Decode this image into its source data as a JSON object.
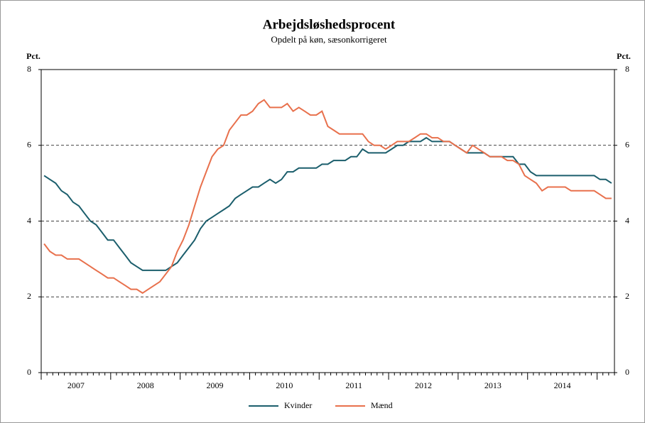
{
  "chart_data": {
    "type": "line",
    "title": "Arbejdsløshedsprocent",
    "subtitle": "Opdelt på køn, sæsonkorrigeret",
    "y_label": "Pct.",
    "y2_label": "Pct.",
    "categories": [
      null,
      null,
      null,
      null,
      null,
      null,
      "2007",
      null,
      null,
      null,
      null,
      null,
      null,
      null,
      null,
      null,
      null,
      null,
      "2008",
      null,
      null,
      null,
      null,
      null,
      null,
      null,
      null,
      null,
      null,
      null,
      "2009",
      null,
      null,
      null,
      null,
      null,
      null,
      null,
      null,
      null,
      null,
      null,
      "2010",
      null,
      null,
      null,
      null,
      null,
      null,
      null,
      null,
      null,
      null,
      null,
      "2011",
      null,
      null,
      null,
      null,
      null,
      null,
      null,
      null,
      null,
      null,
      null,
      "2012",
      null,
      null,
      null,
      null,
      null,
      null,
      null,
      null,
      null,
      null,
      null,
      "2013",
      null,
      null,
      null,
      null,
      null,
      null,
      null,
      null,
      null,
      null,
      null,
      "2014",
      null,
      null,
      null,
      null,
      null,
      null,
      null,
      null
    ],
    "series": [
      {
        "name": "Kvinder",
        "color": "#1b5e6c",
        "values": [
          5.2,
          5.1,
          5.0,
          4.8,
          4.7,
          4.5,
          4.4,
          4.2,
          4.0,
          3.9,
          3.7,
          3.5,
          3.5,
          3.3,
          3.1,
          2.9,
          2.8,
          2.7,
          2.7,
          2.7,
          2.7,
          2.7,
          2.8,
          2.9,
          3.1,
          3.3,
          3.5,
          3.8,
          4.0,
          4.1,
          4.2,
          4.3,
          4.4,
          4.6,
          4.7,
          4.8,
          4.9,
          4.9,
          5.0,
          5.1,
          5.0,
          5.1,
          5.3,
          5.3,
          5.4,
          5.4,
          5.4,
          5.4,
          5.5,
          5.5,
          5.6,
          5.6,
          5.6,
          5.7,
          5.7,
          5.9,
          5.8,
          5.8,
          5.8,
          5.8,
          5.9,
          6.0,
          6.0,
          6.1,
          6.1,
          6.1,
          6.2,
          6.1,
          6.1,
          6.1,
          6.1,
          6.0,
          5.9,
          5.8,
          5.8,
          5.8,
          5.8,
          5.7,
          5.7,
          5.7,
          5.7,
          5.7,
          5.5,
          5.5,
          5.3,
          5.2,
          5.2,
          5.2,
          5.2,
          5.2,
          5.2,
          5.2,
          5.2,
          5.2,
          5.2,
          5.2,
          5.1,
          5.1,
          5.0
        ]
      },
      {
        "name": "Mænd",
        "color": "#e8704c",
        "values": [
          3.4,
          3.2,
          3.1,
          3.1,
          3.0,
          3.0,
          3.0,
          2.9,
          2.8,
          2.7,
          2.6,
          2.5,
          2.5,
          2.4,
          2.3,
          2.2,
          2.2,
          2.1,
          2.2,
          2.3,
          2.4,
          2.6,
          2.8,
          3.2,
          3.5,
          3.9,
          4.4,
          4.9,
          5.3,
          5.7,
          5.9,
          6.0,
          6.4,
          6.6,
          6.8,
          6.8,
          6.9,
          7.1,
          7.2,
          7.0,
          7.0,
          7.0,
          7.1,
          6.9,
          7.0,
          6.9,
          6.8,
          6.8,
          6.9,
          6.5,
          6.4,
          6.3,
          6.3,
          6.3,
          6.3,
          6.3,
          6.1,
          6.0,
          6.0,
          5.9,
          6.0,
          6.1,
          6.1,
          6.1,
          6.2,
          6.3,
          6.3,
          6.2,
          6.2,
          6.1,
          6.1,
          6.0,
          5.9,
          5.8,
          6.0,
          5.9,
          5.8,
          5.7,
          5.7,
          5.7,
          5.6,
          5.6,
          5.5,
          5.2,
          5.1,
          5.0,
          4.8,
          4.9,
          4.9,
          4.9,
          4.9,
          4.8,
          4.8,
          4.8,
          4.8,
          4.8,
          4.7,
          4.6,
          4.6
        ]
      }
    ],
    "ylim": [
      0,
      8
    ],
    "yticks": [
      0,
      2,
      4,
      6,
      8
    ],
    "y2lim": [
      0,
      8
    ],
    "y2ticks": [
      0,
      2,
      4,
      6,
      8
    ],
    "grid": true,
    "legend": "bottom"
  }
}
